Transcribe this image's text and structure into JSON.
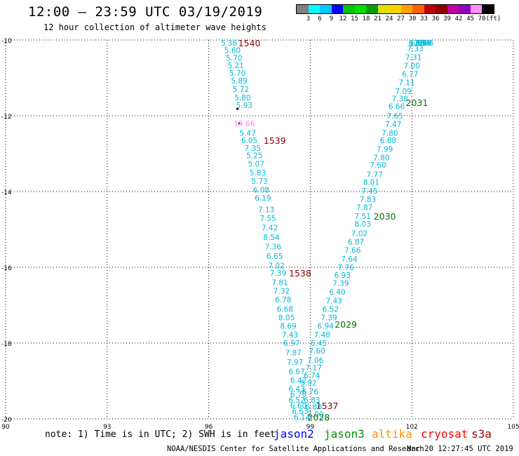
{
  "header": {
    "title": "12:00 — 23:59 UTC 03/19/2019",
    "subtitle": "12 hour collection of altimeter wave heights"
  },
  "legend": {
    "colors": [
      "#808080",
      "#00ffff",
      "#00c8ff",
      "#0000ff",
      "#00c800",
      "#00e000",
      "#00a000",
      "#e0e000",
      "#ffd000",
      "#ffa000",
      "#ff6000",
      "#c00000",
      "#900000",
      "#c000a0",
      "#9000c0",
      "#ff90ff",
      "#000000"
    ],
    "labels": [
      "3",
      "6",
      "9",
      "12",
      "15",
      "18",
      "21",
      "24",
      "27",
      "30",
      "33",
      "36",
      "39",
      "42",
      "45",
      "70",
      "(ft)"
    ]
  },
  "axes": {
    "y_labels": [
      "-10",
      "-12",
      "-14",
      "-16",
      "-18",
      "-20"
    ],
    "x_labels": [
      "90",
      "93",
      "96",
      "99",
      "102",
      "105"
    ]
  },
  "chart_data": {
    "type": "scatter",
    "x_unit": "deg E longitude",
    "y_unit": "deg latitude",
    "xlim": [
      90,
      105
    ],
    "ylim": [
      -20,
      -10
    ],
    "grid": true,
    "tracks": [
      {
        "time_label": "1540",
        "label_color": "#800000",
        "label_pos": [
          97.2,
          -10.05
        ],
        "points": [
          [
            96.6,
            -10.05,
            "5.36"
          ],
          [
            96.7,
            -10.27,
            "5.60"
          ],
          [
            96.75,
            -10.47,
            "5.70"
          ],
          [
            96.8,
            -10.67,
            "5.21"
          ],
          [
            96.85,
            -10.87,
            "5.70"
          ],
          [
            96.9,
            -11.07,
            "5.89"
          ],
          [
            96.95,
            -11.3,
            "5.72"
          ],
          [
            97.0,
            -11.52,
            "5.80"
          ],
          [
            97.05,
            -11.72,
            "5.93"
          ]
        ]
      },
      {
        "time_label": "1539",
        "label_color": "#800000",
        "label_pos": [
          97.95,
          -12.65
        ],
        "points": [
          [
            97.05,
            -12.2,
            "19.66",
            "#ff80ff"
          ],
          [
            97.15,
            -12.45,
            "5.47"
          ],
          [
            97.2,
            -12.65,
            "6.05"
          ],
          [
            97.3,
            -12.85,
            "7.35"
          ],
          [
            97.35,
            -13.05,
            "5.25"
          ],
          [
            97.4,
            -13.27,
            "5.07"
          ],
          [
            97.45,
            -13.5,
            "5.83"
          ],
          [
            97.5,
            -13.72,
            "5.73"
          ],
          [
            97.55,
            -13.95,
            "6.08"
          ],
          [
            97.6,
            -14.17,
            "6.19"
          ],
          [
            97.7,
            -14.47,
            "7.13"
          ],
          [
            97.75,
            -14.7,
            "7.55"
          ],
          [
            97.8,
            -14.95,
            "7.42"
          ],
          [
            97.85,
            -15.2,
            "8.54"
          ],
          [
            97.9,
            -15.45,
            "7.36"
          ],
          [
            97.95,
            -15.7,
            "6.65"
          ],
          [
            98.0,
            -15.95,
            "7.02"
          ]
        ]
      },
      {
        "time_label": "1538",
        "label_color": "#800000",
        "label_pos": [
          98.7,
          -16.15
        ],
        "points": [
          [
            98.05,
            -16.15,
            "7.39"
          ],
          [
            98.1,
            -16.4,
            "7.81"
          ],
          [
            98.15,
            -16.62,
            "7.32"
          ],
          [
            98.2,
            -16.85,
            "6.78"
          ],
          [
            98.25,
            -17.1,
            "6.68"
          ],
          [
            98.3,
            -17.32,
            "8.05"
          ],
          [
            98.35,
            -17.55,
            "8.69"
          ],
          [
            98.4,
            -17.78,
            "7.43"
          ],
          [
            98.45,
            -18.0,
            "6.97"
          ],
          [
            98.5,
            -18.25,
            "7.87"
          ],
          [
            98.55,
            -18.5,
            "7.97"
          ],
          [
            98.6,
            -18.75,
            "6.67"
          ],
          [
            98.65,
            -18.98,
            "6.42"
          ]
        ]
      },
      {
        "time_label": "1537",
        "label_color": "#800000",
        "label_pos": [
          99.5,
          -19.65
        ],
        "points": [
          [
            98.6,
            -19.2,
            "6.43"
          ],
          [
            98.65,
            -19.35,
            "6.70"
          ],
          [
            98.6,
            -19.5,
            "6.52"
          ],
          [
            98.65,
            -19.65,
            "6.60"
          ],
          [
            98.7,
            -19.8,
            "6.63"
          ],
          [
            98.75,
            -19.95,
            "6.14"
          ]
        ]
      },
      {
        "time_label": "2028",
        "label_color": "#007000",
        "label_pos": [
          99.25,
          -19.95
        ],
        "points": [
          [
            98.95,
            -19.05,
            "5.92"
          ],
          [
            99.0,
            -19.28,
            "6.76"
          ],
          [
            99.05,
            -19.5,
            "6.83"
          ],
          [
            99.1,
            -19.68,
            "6.80"
          ],
          [
            99.15,
            -19.88,
            "7.00"
          ],
          [
            99.05,
            -18.85,
            "6.74"
          ],
          [
            99.1,
            -18.65,
            "7.17"
          ],
          [
            99.15,
            -18.45,
            "7.06"
          ],
          [
            99.2,
            -18.2,
            "7.60"
          ],
          [
            99.25,
            -18.0,
            "6.45"
          ]
        ]
      },
      {
        "time_label": "2029",
        "label_color": "#007000",
        "label_pos": [
          100.05,
          -17.5
        ],
        "points": [
          [
            99.35,
            -17.78,
            "7.48"
          ],
          [
            99.45,
            -17.55,
            "6.94"
          ],
          [
            99.55,
            -17.32,
            "7.39"
          ],
          [
            99.6,
            -17.1,
            "6.52"
          ],
          [
            99.7,
            -16.88,
            "7.43"
          ],
          [
            99.8,
            -16.65,
            "6.40"
          ],
          [
            99.9,
            -16.42,
            "7.39"
          ],
          [
            99.95,
            -16.2,
            "6.93"
          ],
          [
            100.05,
            -16.0,
            "7.76"
          ],
          [
            100.15,
            -15.78,
            "7.64"
          ],
          [
            100.25,
            -15.55,
            "7.66"
          ],
          [
            100.35,
            -15.32,
            "6.87"
          ],
          [
            100.45,
            -15.1,
            "7.02"
          ],
          [
            100.55,
            -14.85,
            "8.03"
          ],
          [
            100.55,
            -14.65,
            "7.51"
          ],
          [
            100.6,
            -14.42,
            "7.87"
          ]
        ]
      },
      {
        "time_label": "2030",
        "label_color": "#007000",
        "label_pos": [
          101.2,
          -14.65
        ],
        "points": [
          [
            100.7,
            -14.2,
            "7.83"
          ],
          [
            100.75,
            -13.98,
            "7.45"
          ],
          [
            100.8,
            -13.75,
            "8.01"
          ],
          [
            100.9,
            -13.55,
            "7.77"
          ],
          [
            101.0,
            -13.3,
            "7.60"
          ],
          [
            101.1,
            -13.1,
            "7.80"
          ],
          [
            101.2,
            -12.88,
            "7.99"
          ],
          [
            101.3,
            -12.65,
            "6.88"
          ],
          [
            101.35,
            -12.45,
            "7.80"
          ],
          [
            101.45,
            -12.22,
            "7.47"
          ],
          [
            101.5,
            -12.0,
            "7.65"
          ],
          [
            101.55,
            -11.75,
            "6.66"
          ],
          [
            101.65,
            -11.55,
            "7.38"
          ]
        ]
      },
      {
        "time_label": "2031",
        "label_color": "#007000",
        "label_pos": [
          102.15,
          -11.65
        ],
        "points": [
          [
            101.75,
            -11.35,
            "7.09"
          ],
          [
            101.85,
            -11.12,
            "7.11"
          ],
          [
            101.95,
            -10.9,
            "6.77"
          ],
          [
            102.0,
            -10.68,
            "7.00"
          ],
          [
            102.05,
            -10.45,
            "7.31"
          ],
          [
            102.1,
            -10.22,
            "7.33"
          ],
          [
            102.15,
            -10.0,
            "6.83"
          ],
          [
            102.2,
            -9.8,
            "6.90"
          ],
          [
            102.3,
            -9.6,
            "7.84"
          ],
          [
            102.35,
            -9.4,
            "6.58"
          ],
          [
            102.4,
            -9.2,
            "6.86"
          ]
        ]
      }
    ],
    "point_color": "#00b8d8",
    "markers": [
      [
        96.85,
        -11.82
      ],
      [
        96.9,
        -12.2
      ]
    ]
  },
  "footer": {
    "note": "note: 1) Time is in UTC; 2) SWH is in feet",
    "satellites": [
      {
        "name": "jason2",
        "color": "#0000ff"
      },
      {
        "name": "jason3",
        "color": "#009000"
      },
      {
        "name": "altika",
        "color": "#ff9000"
      },
      {
        "name": "cryosat",
        "color": "#ff0000"
      },
      {
        "name": "s3a",
        "color": "#a00000"
      }
    ],
    "credit": "NOAA/NESDIS Center for Satellite Applications and Research",
    "timestamp": "Mar 20 12:27:45 UTC 2019"
  }
}
